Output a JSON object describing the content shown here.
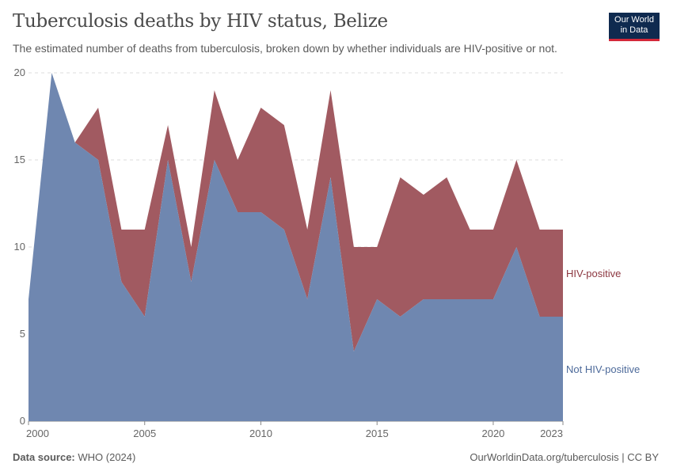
{
  "header": {
    "title": "Tuberculosis deaths by HIV status, Belize",
    "subtitle": "The estimated number of deaths from tuberculosis, broken down by whether individuals are HIV-positive or not."
  },
  "logo": {
    "line1": "Our World",
    "line2": "in Data"
  },
  "footer": {
    "source_label": "Data source:",
    "source_value": "WHO (2024)",
    "url": "OurWorldinData.org/tuberculosis | CC BY"
  },
  "colors": {
    "not_hiv": "#6f87b0",
    "hiv": "#a15a61",
    "hiv_text": "#8c3740",
    "not_hiv_text": "#4d6a9a"
  },
  "chart_data": {
    "type": "area",
    "stacked": true,
    "x": [
      2000,
      2001,
      2002,
      2003,
      2004,
      2005,
      2006,
      2007,
      2008,
      2009,
      2010,
      2011,
      2012,
      2013,
      2014,
      2015,
      2016,
      2017,
      2018,
      2019,
      2020,
      2021,
      2022,
      2023
    ],
    "series": [
      {
        "name": "Not HIV-positive",
        "values": [
          7,
          20,
          16,
          15,
          8,
          6,
          15,
          8,
          15,
          12,
          12,
          11,
          7,
          14,
          4,
          7,
          6,
          7,
          7,
          7,
          7,
          10,
          6,
          6
        ]
      },
      {
        "name": "HIV-positive",
        "values": [
          0,
          0,
          0,
          3,
          3,
          5,
          2,
          2,
          4,
          3,
          6,
          6,
          4,
          5,
          6,
          3,
          8,
          6,
          7,
          4,
          4,
          5,
          5,
          5
        ]
      }
    ],
    "xticks": [
      "2000",
      "2005",
      "2010",
      "2015",
      "2020",
      "2023"
    ],
    "yticks": [
      "0",
      "5",
      "10",
      "15",
      "20"
    ],
    "ylim": [
      0,
      20
    ],
    "xlim": [
      2000,
      2023
    ],
    "grid": true
  }
}
